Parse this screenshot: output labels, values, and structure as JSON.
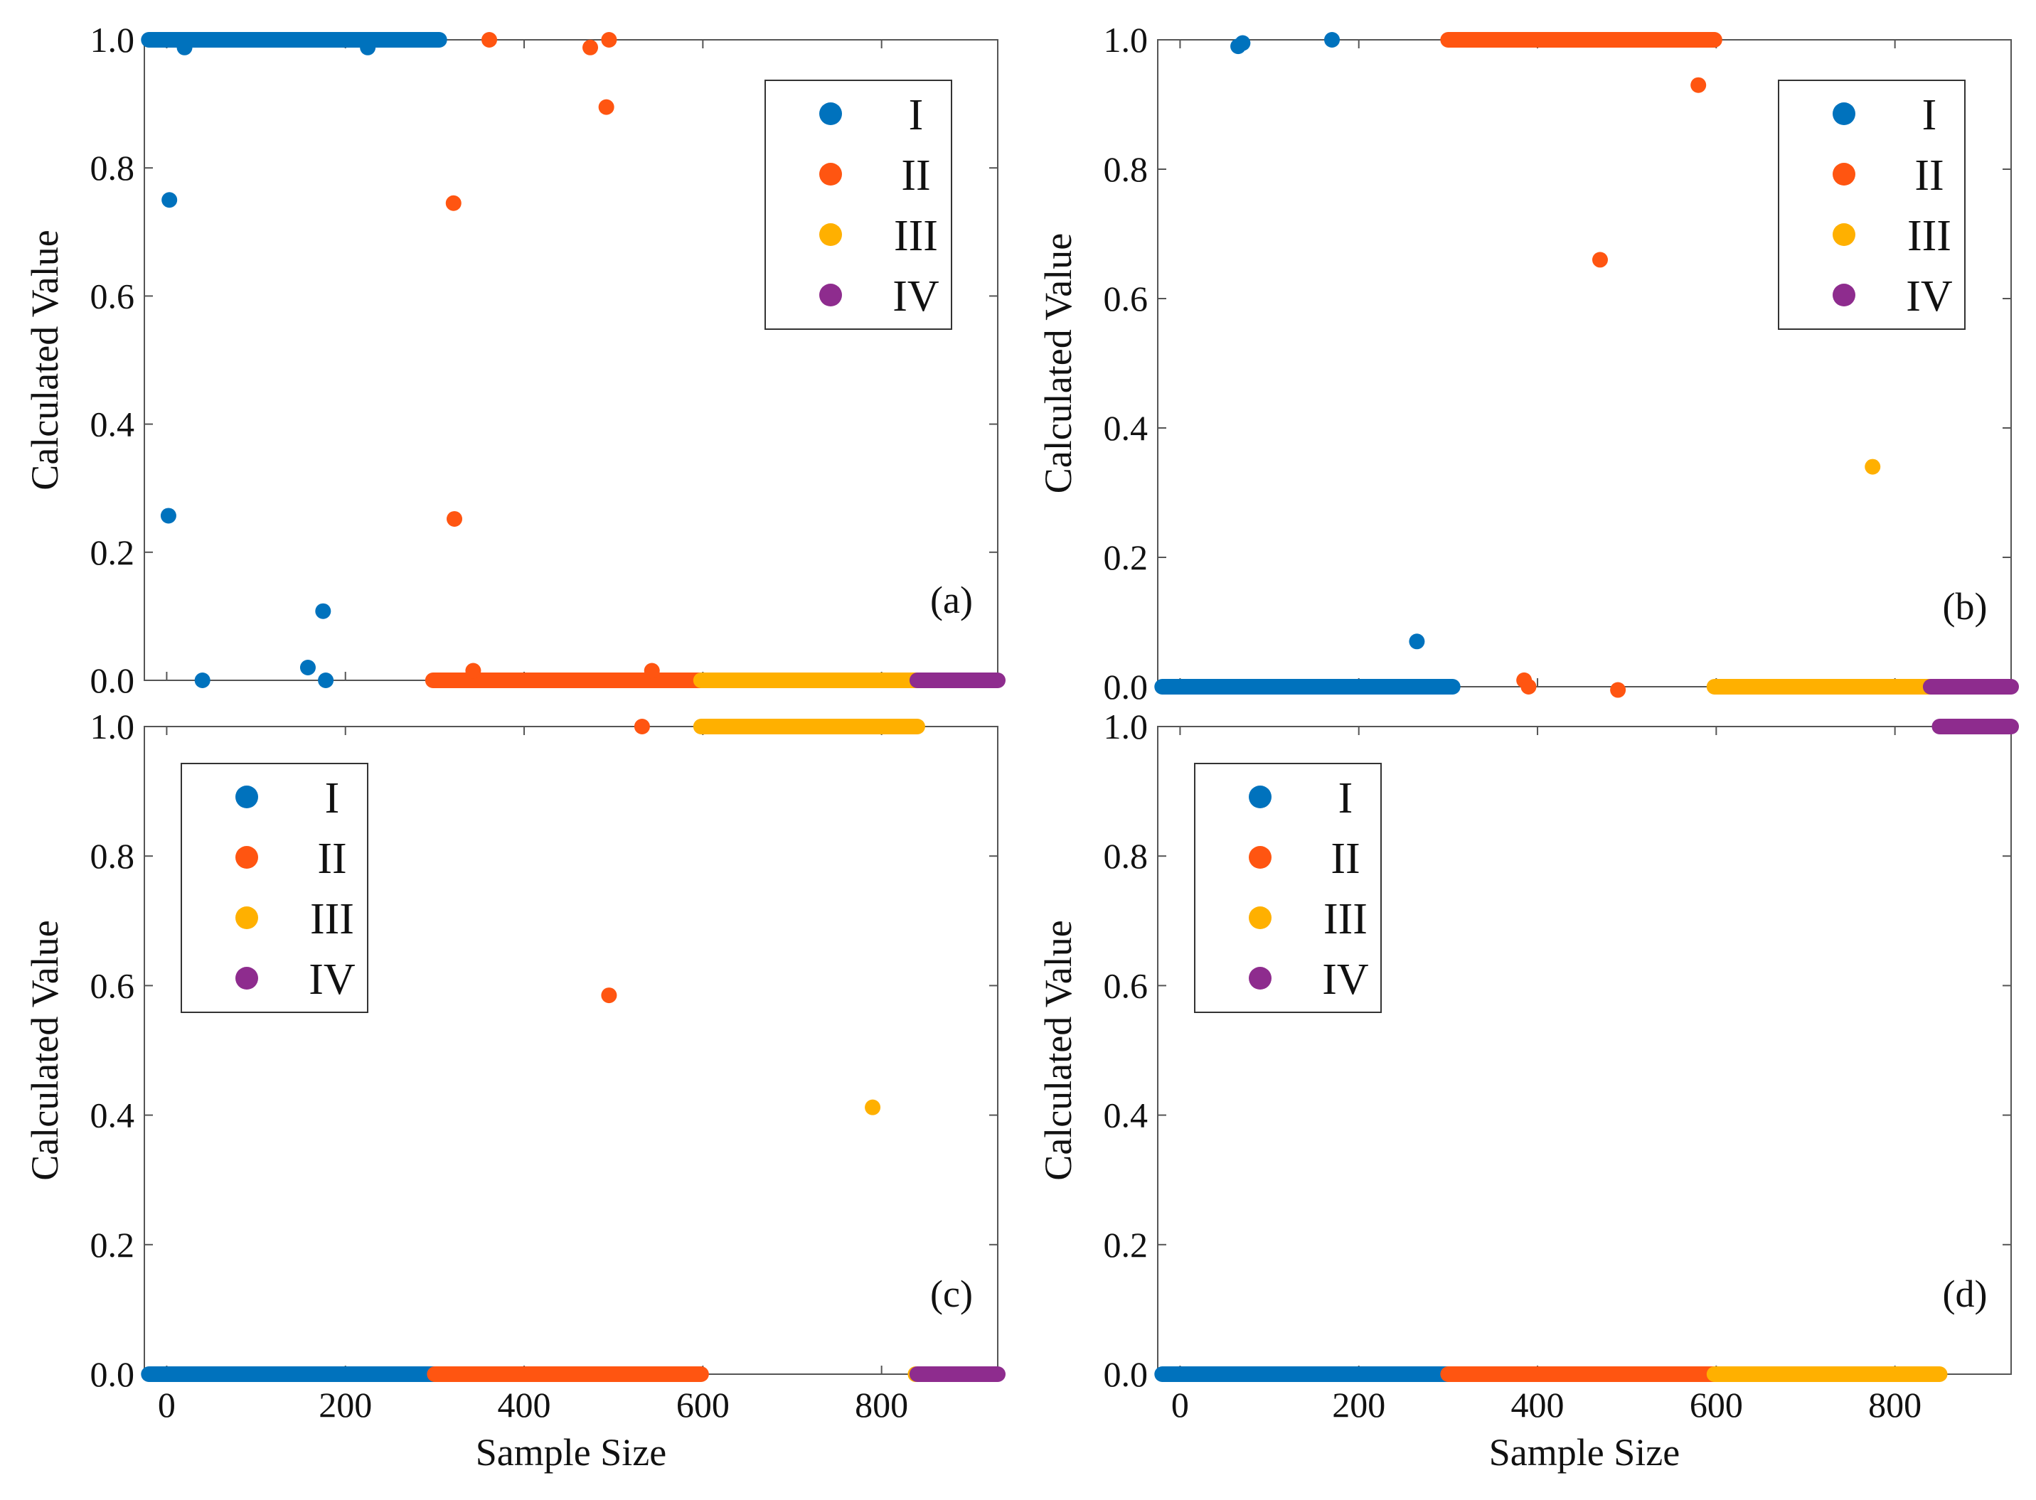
{
  "figure": {
    "panels": [
      "(a)",
      "(b)",
      "(c)",
      "(d)"
    ]
  },
  "colors": {
    "I": "#0072BD",
    "II": "#FF5511",
    "III": "#FFB000",
    "IV": "#8E2C8E",
    "axis": "#555555"
  },
  "chart_data": [
    {
      "type": "scatter",
      "panel_label": "(a)",
      "xlabel": "",
      "ylabel": "Calculated Value",
      "xlim": [
        -25,
        930
      ],
      "ylim": [
        0,
        1
      ],
      "xticks": [
        0,
        200,
        400,
        600,
        800
      ],
      "yticks": [
        "0.0",
        "0.2",
        "0.4",
        "0.6",
        "0.8",
        "1.0"
      ],
      "show_xtick_labels": false,
      "legend": {
        "position": "top-right",
        "entries": [
          "I",
          "II",
          "III",
          "IV"
        ]
      },
      "series": [
        {
          "name": "I",
          "color": "#0072BD",
          "runs": [
            {
              "from": -20,
              "to": 305,
              "y": 1.0
            }
          ],
          "points": [
            [
              3,
              0.75
            ],
            [
              2,
              0.257
            ],
            [
              20,
              0.988
            ],
            [
              40,
              0.0
            ],
            [
              158,
              0.02
            ],
            [
              175,
              0.108
            ],
            [
              178,
              0.0
            ],
            [
              225,
              0.988
            ]
          ]
        },
        {
          "name": "II",
          "color": "#FF5511",
          "runs": [
            {
              "from": 298,
              "to": 598,
              "y": 0.0
            }
          ],
          "points": [
            [
              321,
              0.745
            ],
            [
              322,
              0.252
            ],
            [
              343,
              0.015
            ],
            [
              361,
              1.0
            ],
            [
              474,
              0.988
            ],
            [
              492,
              0.895
            ],
            [
              495,
              1.0
            ],
            [
              543,
              0.015
            ]
          ]
        },
        {
          "name": "III",
          "color": "#FFB000",
          "runs": [
            {
              "from": 598,
              "to": 840,
              "y": 0.0
            }
          ],
          "points": []
        },
        {
          "name": "IV",
          "color": "#8E2C8E",
          "runs": [
            {
              "from": 840,
              "to": 930,
              "y": 0.0
            }
          ],
          "points": []
        }
      ]
    },
    {
      "type": "scatter",
      "panel_label": "(b)",
      "xlabel": "",
      "ylabel": "Calculated Value",
      "xlim": [
        -25,
        930
      ],
      "ylim": [
        0,
        1
      ],
      "xticks": [
        0,
        200,
        400,
        600,
        800
      ],
      "yticks": [
        "0.0",
        "0.2",
        "0.4",
        "0.6",
        "0.8",
        "1.0"
      ],
      "show_xtick_labels": false,
      "legend": {
        "position": "top-right",
        "entries": [
          "I",
          "II",
          "III",
          "IV"
        ]
      },
      "series": [
        {
          "name": "I",
          "color": "#0072BD",
          "runs": [
            {
              "from": -20,
              "to": 305,
              "y": 0.0
            }
          ],
          "points": [
            [
              65,
              0.99
            ],
            [
              70,
              0.995
            ],
            [
              170,
              1.0
            ],
            [
              265,
              0.07
            ]
          ]
        },
        {
          "name": "II",
          "color": "#FF5511",
          "runs": [
            {
              "from": 300,
              "to": 598,
              "y": 1.0
            }
          ],
          "points": [
            [
              385,
              0.01
            ],
            [
              390,
              0.0
            ],
            [
              470,
              0.66
            ],
            [
              490,
              -0.005
            ],
            [
              580,
              0.93
            ]
          ]
        },
        {
          "name": "III",
          "color": "#FFB000",
          "runs": [
            {
              "from": 598,
              "to": 840,
              "y": 0.0
            }
          ],
          "points": [
            [
              775,
              0.34
            ]
          ]
        },
        {
          "name": "IV",
          "color": "#8E2C8E",
          "runs": [
            {
              "from": 840,
              "to": 930,
              "y": 0.0
            }
          ],
          "points": []
        }
      ]
    },
    {
      "type": "scatter",
      "panel_label": "(c)",
      "xlabel": "Sample Size",
      "ylabel": "Calculated Value",
      "xlim": [
        -25,
        930
      ],
      "ylim": [
        0,
        1
      ],
      "xticks": [
        0,
        200,
        400,
        600,
        800
      ],
      "yticks": [
        "0.0",
        "0.2",
        "0.4",
        "0.6",
        "0.8",
        "1.0"
      ],
      "show_xtick_labels": true,
      "legend": {
        "position": "top-left",
        "entries": [
          "I",
          "II",
          "III",
          "IV"
        ]
      },
      "series": [
        {
          "name": "I",
          "color": "#0072BD",
          "runs": [
            {
              "from": -20,
              "to": 305,
              "y": 0.0
            }
          ],
          "points": []
        },
        {
          "name": "II",
          "color": "#FF5511",
          "runs": [
            {
              "from": 300,
              "to": 598,
              "y": 0.0
            }
          ],
          "points": [
            [
              495,
              0.585
            ],
            [
              532,
              1.0
            ]
          ]
        },
        {
          "name": "III",
          "color": "#FFB000",
          "runs": [
            {
              "from": 598,
              "to": 840,
              "y": 1.0
            }
          ],
          "points": [
            [
              790,
              0.412
            ],
            [
              838,
              0.0
            ]
          ]
        },
        {
          "name": "IV",
          "color": "#8E2C8E",
          "runs": [
            {
              "from": 840,
              "to": 930,
              "y": 0.0
            }
          ],
          "points": []
        }
      ]
    },
    {
      "type": "scatter",
      "panel_label": "(d)",
      "xlabel": "Sample Size",
      "ylabel": "Calculated Value",
      "xlim": [
        -25,
        930
      ],
      "ylim": [
        0,
        1
      ],
      "xticks": [
        0,
        200,
        400,
        600,
        800
      ],
      "yticks": [
        "0.0",
        "0.2",
        "0.4",
        "0.6",
        "0.8",
        "1.0"
      ],
      "show_xtick_labels": true,
      "legend": {
        "position": "top-left",
        "entries": [
          "I",
          "II",
          "III",
          "IV"
        ]
      },
      "series": [
        {
          "name": "I",
          "color": "#0072BD",
          "runs": [
            {
              "from": -20,
              "to": 305,
              "y": 0.0
            }
          ],
          "points": []
        },
        {
          "name": "II",
          "color": "#FF5511",
          "runs": [
            {
              "from": 300,
              "to": 598,
              "y": 0.0
            }
          ],
          "points": []
        },
        {
          "name": "III",
          "color": "#FFB000",
          "runs": [
            {
              "from": 598,
              "to": 850,
              "y": 0.0
            }
          ],
          "points": []
        },
        {
          "name": "IV",
          "color": "#8E2C8E",
          "runs": [
            {
              "from": 850,
              "to": 930,
              "y": 1.0
            }
          ],
          "points": []
        }
      ]
    }
  ]
}
